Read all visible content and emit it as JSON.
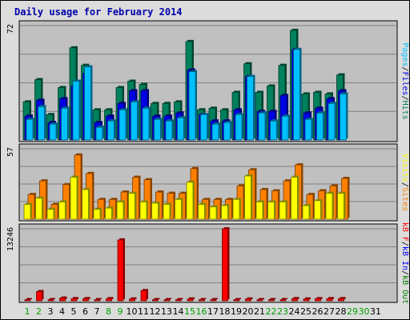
{
  "page": {
    "title": "Daily usage for February 2014"
  },
  "colors": {
    "background": "#dcdcdc",
    "plot_bg": "#c0c0c0",
    "hits": "#00805c",
    "files": "#0000e6",
    "pages": "#00c0ff",
    "visits": "#ffff00",
    "sites": "#ff8000",
    "kb_in": "#0000ff",
    "kb_out": "#007c00",
    "kb_f": "#ff0000",
    "weekend": "#00a000",
    "weekday": "#000000"
  },
  "chart_data": {
    "type": "bar",
    "title": "Daily usage for February 2014",
    "categories": [
      "1",
      "2",
      "3",
      "4",
      "5",
      "6",
      "7",
      "8",
      "9",
      "10",
      "11",
      "12",
      "13",
      "14",
      "15",
      "16",
      "17",
      "18",
      "19",
      "20",
      "21",
      "22",
      "23",
      "24",
      "25",
      "26",
      "27",
      "28",
      "29",
      "30",
      "31"
    ],
    "weekend_days": [
      "1",
      "2",
      "8",
      "9",
      "15",
      "16",
      "22",
      "23",
      "29",
      "30"
    ],
    "panels": [
      {
        "name": "hits-files-pages",
        "ymax_label": "72",
        "ymax": 72,
        "legend": [
          {
            "text": "Pages",
            "color": "#00c0ff"
          },
          {
            "text": "/",
            "color": "#000000"
          },
          {
            "text": "Files",
            "color": "#0000e6"
          },
          {
            "text": "/",
            "color": "#000000"
          },
          {
            "text": "Hits",
            "color": "#00805c"
          }
        ],
        "series": [
          {
            "name": "Hits",
            "color": "#00805c",
            "values": [
              24,
              38,
              16,
              33,
              58,
              47,
              19,
              19,
              33,
              37,
              35,
              23,
              23,
              24,
              62,
              19,
              20,
              19,
              30,
              48,
              30,
              34,
              47,
              69,
              29,
              30,
              29,
              41,
              null,
              null,
              null
            ]
          },
          {
            "name": "Files",
            "color": "#0000e6",
            "values": [
              15,
              25,
              11,
              26,
              34,
              42,
              11,
              15,
              23,
              31,
              31,
              15,
              15,
              17,
              44,
              16,
              12,
              12,
              19,
              40,
              18,
              18,
              28,
              57,
              17,
              20,
              26,
              31,
              null,
              null,
              null
            ]
          },
          {
            "name": "Pages",
            "color": "#00c0ff",
            "values": [
              13,
              21,
              10,
              20,
              37,
              46,
              8,
              12,
              19,
              24,
              20,
              13,
              12,
              14,
              43,
              16,
              10,
              11,
              16,
              40,
              17,
              12,
              15,
              57,
              13,
              17,
              23,
              29,
              null,
              null,
              null
            ]
          }
        ]
      },
      {
        "name": "sites-visits",
        "ymax_label": "57",
        "ymax": 57,
        "legend": [
          {
            "text": "Visits",
            "color": "#ffff00"
          },
          {
            "text": "/",
            "color": "#000000"
          },
          {
            "text": "Sites",
            "color": "#ff8000"
          }
        ],
        "series": [
          {
            "name": "Sites",
            "color": "#ff8000",
            "values": [
              20,
              31,
              12,
              28,
              52,
              37,
              16,
              16,
              22,
              34,
              32,
              22,
              21,
              21,
              41,
              16,
              16,
              16,
              27,
              40,
              24,
              23,
              31,
              44,
              20,
              23,
              27,
              33,
              null,
              null,
              null
            ]
          },
          {
            "name": "Visits",
            "color": "#ffff00",
            "values": [
              12,
              17,
              8,
              14,
              34,
              24,
              8,
              9,
              14,
              21,
              14,
              13,
              12,
              16,
              30,
              12,
              10,
              11,
              16,
              35,
              14,
              14,
              14,
              34,
              11,
              15,
              21,
              21,
              null,
              null,
              null
            ]
          }
        ]
      },
      {
        "name": "kbytes",
        "ymax_label": "13246",
        "ymax": 13246,
        "legend": [
          {
            "text": "kB F",
            "color": "#ff0000"
          },
          {
            "text": "/",
            "color": "#000000"
          },
          {
            "text": "kB In",
            "color": "#0000ff"
          },
          {
            "text": "/",
            "color": "#000000"
          },
          {
            "text": "kB Out",
            "color": "#007c00"
          }
        ],
        "series": [
          {
            "name": "kB F",
            "color": "#ff0000",
            "values": [
              220,
              1700,
              220,
              500,
              400,
              400,
              220,
              400,
              11200,
              340,
              1880,
              220,
              220,
              220,
              340,
              220,
              220,
              13246,
              220,
              340,
              220,
              220,
              220,
              400,
              340,
              400,
              400,
              400,
              null,
              null,
              null
            ]
          }
        ]
      }
    ]
  }
}
